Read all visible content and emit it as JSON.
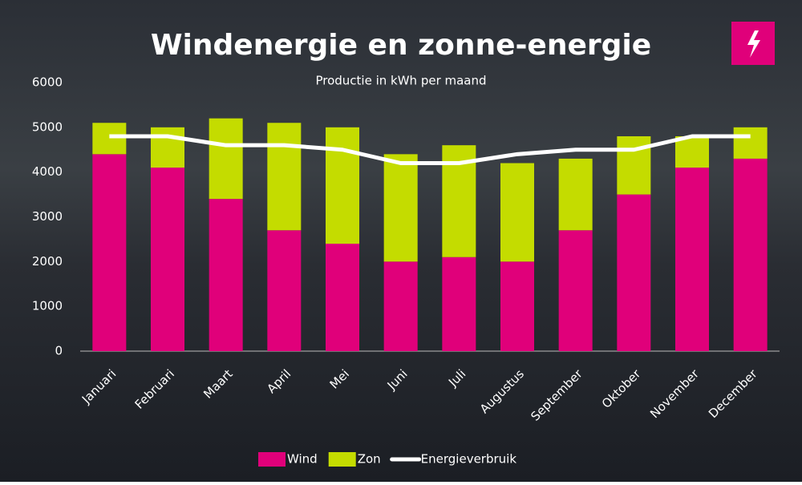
{
  "chart_data": {
    "type": "bar",
    "stacked": true,
    "title": "Windenergie en zonne-energie",
    "subtitle": "Productie in kWh per maand",
    "categories": [
      "Januari",
      "Februari",
      "Maart",
      "April",
      "Mei",
      "Juni",
      "Juli",
      "Augustus",
      "September",
      "Oktober",
      "November",
      "December"
    ],
    "series": [
      {
        "name": "Wind",
        "type": "bar",
        "color": "#e0007a",
        "values": [
          4400,
          4100,
          3400,
          2700,
          2400,
          2000,
          2100,
          2000,
          2700,
          3500,
          4100,
          4300
        ]
      },
      {
        "name": "Zon",
        "type": "bar",
        "color": "#c4dc00",
        "values": [
          700,
          900,
          1800,
          2400,
          2600,
          2400,
          2500,
          2200,
          1600,
          1300,
          700,
          700
        ]
      },
      {
        "name": "Energieverbruik",
        "type": "line",
        "color": "#ffffff",
        "values": [
          4800,
          4800,
          4600,
          4600,
          4500,
          4200,
          4200,
          4400,
          4500,
          4500,
          4800,
          4800
        ]
      }
    ],
    "ylim": [
      0,
      6000
    ],
    "yticks": [
      0,
      1000,
      2000,
      3000,
      4000,
      5000,
      6000
    ],
    "grid": false,
    "legend": "bottom"
  }
}
